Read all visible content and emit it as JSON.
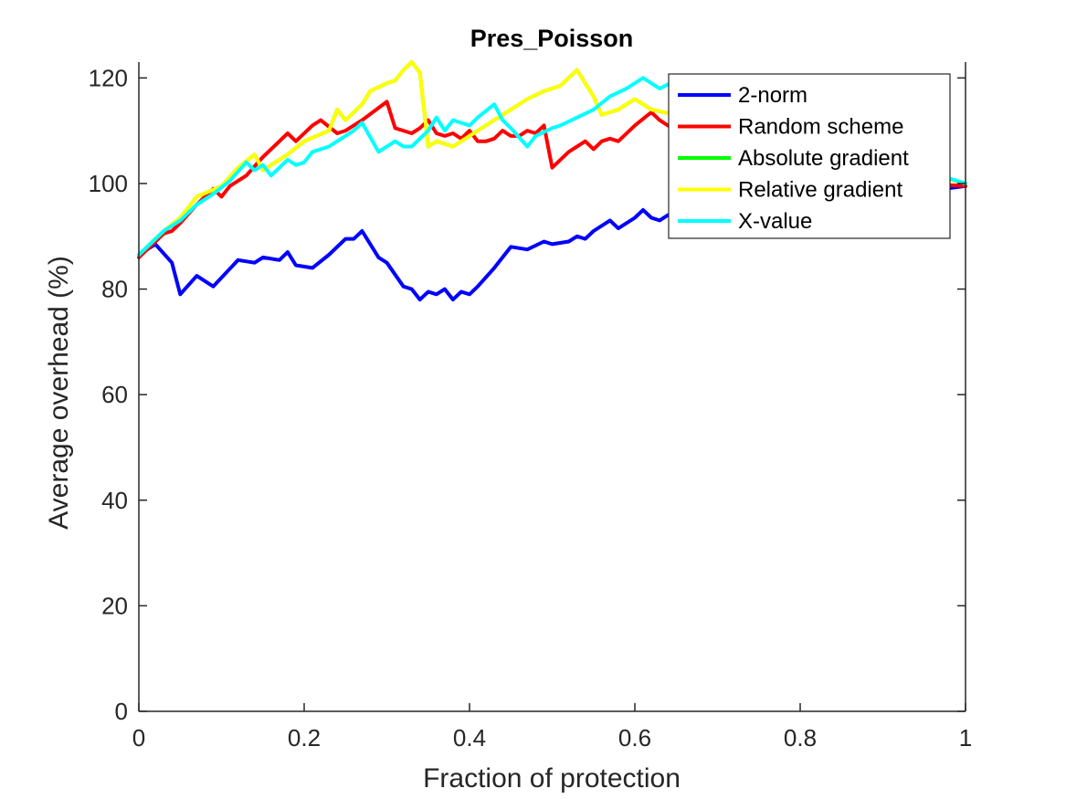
{
  "chart_data": {
    "type": "line",
    "title": "Pres_Poisson",
    "xlabel": "Fraction of protection",
    "ylabel": "Average overhead (%)",
    "xlim": [
      0,
      1
    ],
    "ylim": [
      0,
      123
    ],
    "xticks": [
      0,
      0.2,
      0.4,
      0.6,
      0.8,
      1
    ],
    "xtick_labels": [
      "0",
      "0.2",
      "0.4",
      "0.6",
      "0.8",
      "1"
    ],
    "yticks": [
      0,
      20,
      40,
      60,
      80,
      100,
      120
    ],
    "ytick_labels": [
      "0",
      "20",
      "40",
      "60",
      "80",
      "100",
      "120"
    ],
    "grid": false,
    "legend_position": "top-right",
    "series": [
      {
        "name": "2-norm",
        "color": "#0000ff",
        "x": [
          0,
          0.02,
          0.04,
          0.05,
          0.07,
          0.09,
          0.12,
          0.14,
          0.15,
          0.17,
          0.18,
          0.19,
          0.21,
          0.23,
          0.25,
          0.26,
          0.27,
          0.29,
          0.3,
          0.32,
          0.33,
          0.34,
          0.35,
          0.36,
          0.37,
          0.38,
          0.39,
          0.4,
          0.41,
          0.43,
          0.45,
          0.47,
          0.49,
          0.5,
          0.52,
          0.53,
          0.54,
          0.55,
          0.57,
          0.58,
          0.6,
          0.61,
          0.62,
          0.63,
          0.64,
          0.66,
          0.7,
          0.75,
          0.8,
          0.85,
          0.9,
          0.95,
          1.0
        ],
        "y": [
          86.5,
          88.5,
          85,
          79,
          82.5,
          80.5,
          85.5,
          85,
          86,
          85.5,
          87,
          84.5,
          84,
          86.5,
          89.5,
          89.5,
          91,
          86,
          85,
          80.5,
          80,
          78,
          79.5,
          79,
          80,
          78,
          79.5,
          79,
          80.5,
          84,
          88,
          87.5,
          89,
          88.5,
          89,
          90,
          89.5,
          91,
          93,
          91.5,
          93.5,
          95,
          93.5,
          93,
          94,
          95,
          95,
          95.5,
          96,
          97,
          97.5,
          98.5,
          99.5
        ]
      },
      {
        "name": "Random scheme",
        "color": "#ff0000",
        "x": [
          0,
          0.01,
          0.03,
          0.04,
          0.05,
          0.07,
          0.09,
          0.1,
          0.11,
          0.13,
          0.15,
          0.17,
          0.18,
          0.19,
          0.21,
          0.22,
          0.24,
          0.25,
          0.27,
          0.3,
          0.31,
          0.32,
          0.33,
          0.34,
          0.35,
          0.36,
          0.37,
          0.38,
          0.39,
          0.4,
          0.41,
          0.42,
          0.43,
          0.44,
          0.45,
          0.46,
          0.47,
          0.48,
          0.49,
          0.5,
          0.52,
          0.54,
          0.55,
          0.56,
          0.57,
          0.58,
          0.6,
          0.62,
          0.63,
          0.64,
          0.65,
          0.7,
          0.75,
          0.8,
          0.85,
          0.9,
          0.95,
          1.0
        ],
        "y": [
          86,
          87.5,
          90.5,
          91,
          92.5,
          96,
          99,
          97.5,
          99.5,
          101.5,
          105,
          108,
          109.5,
          108,
          111,
          112,
          109.5,
          110,
          112,
          115.5,
          110.5,
          110,
          109.5,
          110.5,
          112,
          109.5,
          109,
          109.5,
          108.5,
          110,
          108,
          108,
          108.5,
          110,
          109,
          109,
          110,
          109.5,
          111,
          103,
          106,
          108,
          106.5,
          108,
          108.5,
          108,
          111,
          113.5,
          112,
          111,
          110,
          108,
          106,
          104,
          102,
          101,
          100,
          99.5
        ]
      },
      {
        "name": "Absolute gradient",
        "color": "#00ff00",
        "x": [
          0,
          0.03,
          0.05,
          0.07,
          0.1,
          0.12,
          0.14,
          0.15,
          0.18,
          0.2,
          0.23,
          0.24,
          0.25,
          0.27,
          0.28,
          0.3,
          0.31,
          0.32,
          0.33,
          0.34,
          0.35,
          0.36,
          0.38,
          0.39,
          0.41,
          0.43,
          0.45,
          0.47,
          0.49,
          0.51,
          0.53,
          0.55,
          0.56,
          0.58,
          0.6,
          0.62,
          0.65,
          0.7,
          0.75,
          0.8,
          0.85,
          0.9,
          0.95,
          1.0
        ],
        "y": [
          86.5,
          91,
          93.5,
          97.5,
          99.5,
          103,
          105.5,
          102.5,
          105.5,
          108,
          110,
          114,
          112,
          115,
          117.5,
          119,
          119.5,
          121.5,
          123,
          121,
          107,
          108,
          107,
          108,
          110,
          112,
          114,
          116,
          117.5,
          118.5,
          121.5,
          116.5,
          113,
          114,
          116,
          114,
          113,
          112,
          110,
          108,
          106,
          104,
          102,
          100
        ]
      },
      {
        "name": "Relative gradient",
        "color": "#ffff00",
        "x": [
          0,
          0.03,
          0.05,
          0.07,
          0.1,
          0.12,
          0.14,
          0.15,
          0.18,
          0.2,
          0.23,
          0.24,
          0.25,
          0.27,
          0.28,
          0.3,
          0.31,
          0.32,
          0.33,
          0.34,
          0.35,
          0.36,
          0.38,
          0.39,
          0.41,
          0.43,
          0.45,
          0.47,
          0.49,
          0.51,
          0.53,
          0.55,
          0.56,
          0.58,
          0.6,
          0.62,
          0.65,
          0.7,
          0.75,
          0.8,
          0.85,
          0.9,
          0.95,
          1.0
        ],
        "y": [
          86.5,
          91,
          93.5,
          97.5,
          99.5,
          103,
          105.5,
          102.5,
          105.5,
          108,
          110,
          114,
          112,
          115,
          117.5,
          119,
          119.5,
          121.5,
          123,
          121,
          107,
          108,
          107,
          108,
          110,
          112,
          114,
          116,
          117.5,
          118.5,
          121.5,
          116.5,
          113,
          114,
          116,
          114,
          113,
          112,
          110,
          108,
          106,
          104,
          102,
          100
        ]
      },
      {
        "name": "X-value",
        "color": "#00ffff",
        "x": [
          0,
          0.03,
          0.05,
          0.07,
          0.09,
          0.11,
          0.13,
          0.14,
          0.15,
          0.16,
          0.18,
          0.19,
          0.2,
          0.21,
          0.23,
          0.24,
          0.26,
          0.27,
          0.29,
          0.31,
          0.32,
          0.33,
          0.35,
          0.36,
          0.37,
          0.38,
          0.4,
          0.41,
          0.43,
          0.44,
          0.45,
          0.47,
          0.48,
          0.5,
          0.51,
          0.53,
          0.55,
          0.57,
          0.59,
          0.6,
          0.61,
          0.63,
          0.65,
          0.68,
          0.72,
          0.76,
          0.8,
          0.85,
          0.9,
          0.95,
          1.0
        ],
        "y": [
          86.5,
          91,
          93,
          96,
          98,
          100.5,
          104,
          102.5,
          103.5,
          101.5,
          104.5,
          103.5,
          104,
          106,
          107,
          108,
          110,
          111.5,
          106,
          108,
          107,
          107,
          110,
          112.5,
          110,
          112,
          111,
          112.5,
          115,
          112,
          110.5,
          107,
          109,
          110.5,
          111,
          112.5,
          114,
          116.5,
          118,
          119,
          120,
          118,
          119.5,
          118,
          116,
          114,
          111,
          108,
          105,
          102.5,
          100
        ]
      }
    ]
  }
}
